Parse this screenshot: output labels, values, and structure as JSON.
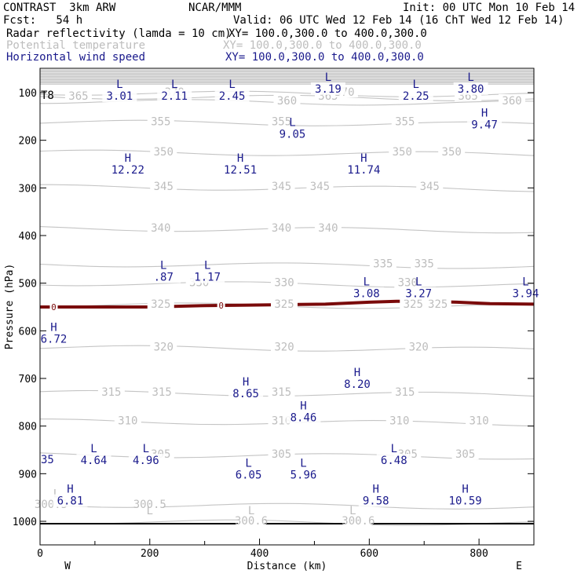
{
  "header": {
    "model": "CONTRAST  3km ARW",
    "center": "NCAR/MMM",
    "init": "Init: 00 UTC Mon 10 Feb 14",
    "fcst": "Fcst:   54 h",
    "valid": "Valid: 06 UTC Wed 12 Feb 14 (16 ChT Wed 12 Feb 14)",
    "fields": [
      {
        "name": "Radar reflectivity (lamda = 10 cm)",
        "xy": "XY= 100.0,300.0 to 400.0,300.0",
        "color": "#000000"
      },
      {
        "name": "Potential temperature",
        "xy": "XY= 100.0,300.0 to 400.0,300.0",
        "color": "#bdbdbd"
      },
      {
        "name": "Horizontal wind speed",
        "xy": "XY= 100.0,300.0 to 400.0,300.0",
        "color": "#1a1a8c"
      }
    ]
  },
  "chart_data": {
    "type": "cross-section",
    "xlabel": "Distance (km)",
    "ylabel": "Pressure (hPa)",
    "xlim": [
      0,
      900
    ],
    "ylim": [
      1050,
      50
    ],
    "x_ticks": [
      0,
      200,
      400,
      600,
      800
    ],
    "y_ticks": [
      100,
      200,
      300,
      400,
      500,
      600,
      700,
      800,
      900,
      1000
    ],
    "west_label": "W",
    "east_label": "E",
    "theta_contours": [
      {
        "value": "365",
        "p": 108,
        "label_x": [
          70,
          525,
          780
        ]
      },
      {
        "value": "370",
        "p": 100,
        "label_x": [
          245,
          555
        ]
      },
      {
        "value": "360",
        "p": 118,
        "label_x": [
          450,
          860
        ]
      },
      {
        "value": "355",
        "p": 162,
        "label_x": [
          220,
          440,
          665
        ]
      },
      {
        "value": "350",
        "p": 225,
        "label_x": [
          225,
          660,
          750
        ]
      },
      {
        "value": "345",
        "p": 298,
        "label_x": [
          225,
          440,
          510,
          710
        ]
      },
      {
        "value": "340",
        "p": 385,
        "label_x": [
          220,
          440,
          525
        ]
      },
      {
        "value": "335",
        "p": 460,
        "label_x": [
          625,
          700
        ]
      },
      {
        "value": "330",
        "p": 500,
        "label_x": [
          290,
          445,
          670
        ]
      },
      {
        "value": "325",
        "p": 545,
        "label_x": [
          220,
          445,
          680,
          725
        ]
      },
      {
        "value": "320",
        "p": 635,
        "label_x": [
          225,
          445,
          690
        ]
      },
      {
        "value": "315",
        "p": 730,
        "label_x": [
          130,
          222,
          440,
          665
        ]
      },
      {
        "value": "310",
        "p": 790,
        "label_x": [
          160,
          440,
          655,
          800
        ]
      },
      {
        "value": "305",
        "p": 860,
        "label_x": [
          220,
          440,
          670,
          775
        ]
      },
      {
        "value": "300.5",
        "p": 965,
        "label_x": [
          20,
          200
        ]
      },
      {
        "value": "300.6",
        "p": 1000,
        "label_x": [
          385,
          580
        ]
      }
    ],
    "theta_extrema": [
      {
        "type": "L",
        "x": 200,
        "p": 985
      },
      {
        "type": "L",
        "x": 385,
        "p": 985
      },
      {
        "type": "L",
        "x": 570,
        "p": 985
      },
      {
        "type": "L",
        "x": 30,
        "p": 950
      }
    ],
    "wind_extrema": [
      {
        "type": "L",
        "value": "3.01",
        "x": 145,
        "p": 95
      },
      {
        "type": "L",
        "value": "2.11",
        "x": 245,
        "p": 95
      },
      {
        "type": "L",
        "value": "2.45",
        "x": 350,
        "p": 95
      },
      {
        "type": "L",
        "value": "3.19",
        "x": 525,
        "p": 80
      },
      {
        "type": "L",
        "value": "2.25",
        "x": 685,
        "p": 95
      },
      {
        "type": "L",
        "value": "3.80",
        "x": 785,
        "p": 80
      },
      {
        "type": "L",
        "value": "9.05",
        "x": 460,
        "p": 175
      },
      {
        "type": "H",
        "value": "9.47",
        "x": 810,
        "p": 155
      },
      {
        "type": "H",
        "value": "12.22",
        "x": 160,
        "p": 250
      },
      {
        "type": "H",
        "value": "12.51",
        "x": 365,
        "p": 250
      },
      {
        "type": "H",
        "value": "11.74",
        "x": 590,
        "p": 250
      },
      {
        "type": "L",
        "value": ".87",
        "x": 225,
        "p": 475
      },
      {
        "type": "L",
        "value": "1.17",
        "x": 305,
        "p": 475
      },
      {
        "type": "L",
        "value": "3.08",
        "x": 595,
        "p": 510
      },
      {
        "type": "L",
        "value": "3.27",
        "x": 690,
        "p": 510
      },
      {
        "type": "L",
        "value": "3.94",
        "x": 885,
        "p": 510
      },
      {
        "type": "H",
        "value": "6.72",
        "x": 25,
        "p": 605
      },
      {
        "type": "H",
        "value": "8.20",
        "x": 578,
        "p": 700
      },
      {
        "type": "H",
        "value": "8.65",
        "x": 375,
        "p": 720
      },
      {
        "type": "H",
        "value": "8.46",
        "x": 480,
        "p": 770
      },
      {
        "type": "L",
        "value": "4.64",
        "x": 98,
        "p": 860
      },
      {
        "type": "L",
        "value": "4.96",
        "x": 193,
        "p": 860
      },
      {
        "type": "L",
        "value": "6.48",
        "x": 645,
        "p": 860
      },
      {
        "type": "L",
        "value": "6.05",
        "x": 380,
        "p": 890
      },
      {
        "type": "L",
        "value": "5.96",
        "x": 480,
        "p": 890
      },
      {
        "type": "H",
        "value": "6.81",
        "x": 55,
        "p": 945
      },
      {
        "type": "H",
        "value": "9.58",
        "x": 612,
        "p": 945
      },
      {
        "type": "H",
        "value": "10.59",
        "x": 775,
        "p": 945
      }
    ],
    "edge_labels": [
      {
        "value": "T8",
        "x": 0,
        "p": 105
      },
      {
        "value": "35",
        "x": 0,
        "p": 870
      }
    ],
    "freezing_level": {
      "label": "0",
      "label_x": [
        25,
        330,
        460,
        675
      ],
      "x": [
        0,
        100,
        200,
        300,
        380,
        450,
        520,
        600,
        650,
        700,
        760,
        820,
        900
      ],
      "p": [
        550,
        550,
        550,
        547,
        546,
        545,
        544,
        540,
        538,
        538,
        540,
        543,
        544
      ]
    },
    "surface_p": 1005
  }
}
